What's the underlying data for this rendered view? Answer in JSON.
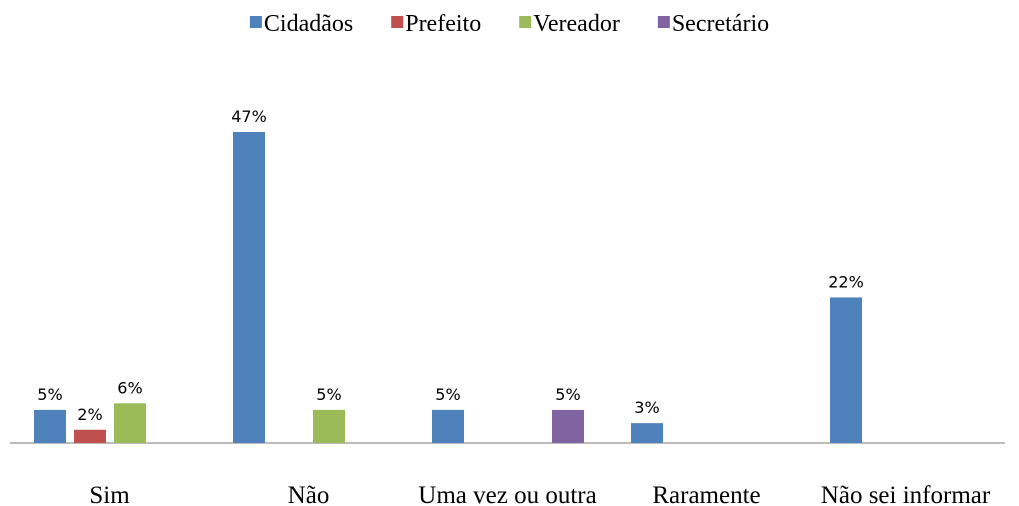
{
  "chart_data": {
    "type": "bar",
    "categories": [
      "Sim",
      "Não",
      "Uma vez ou outra",
      "Raramente",
      "Não sei informar"
    ],
    "series": [
      {
        "name": "Cidadãos",
        "color": "#4f81bd",
        "values": [
          5,
          47,
          5,
          3,
          22
        ],
        "value_labels": [
          "5%",
          "47%",
          "5%",
          "3%",
          "22%"
        ]
      },
      {
        "name": "Prefeito",
        "color": "#c0504d",
        "values": [
          2,
          null,
          null,
          null,
          null
        ],
        "value_labels": [
          "2%",
          null,
          null,
          null,
          null
        ]
      },
      {
        "name": "Vereador",
        "color": "#9bbb59",
        "values": [
          6,
          5,
          null,
          null,
          null
        ],
        "value_labels": [
          "6%",
          "5%",
          null,
          null,
          null
        ]
      },
      {
        "name": "Secretário",
        "color": "#8064a2",
        "values": [
          null,
          null,
          5,
          null,
          null
        ],
        "value_labels": [
          null,
          null,
          "5%",
          null,
          null
        ]
      }
    ],
    "legend": "top"
  }
}
